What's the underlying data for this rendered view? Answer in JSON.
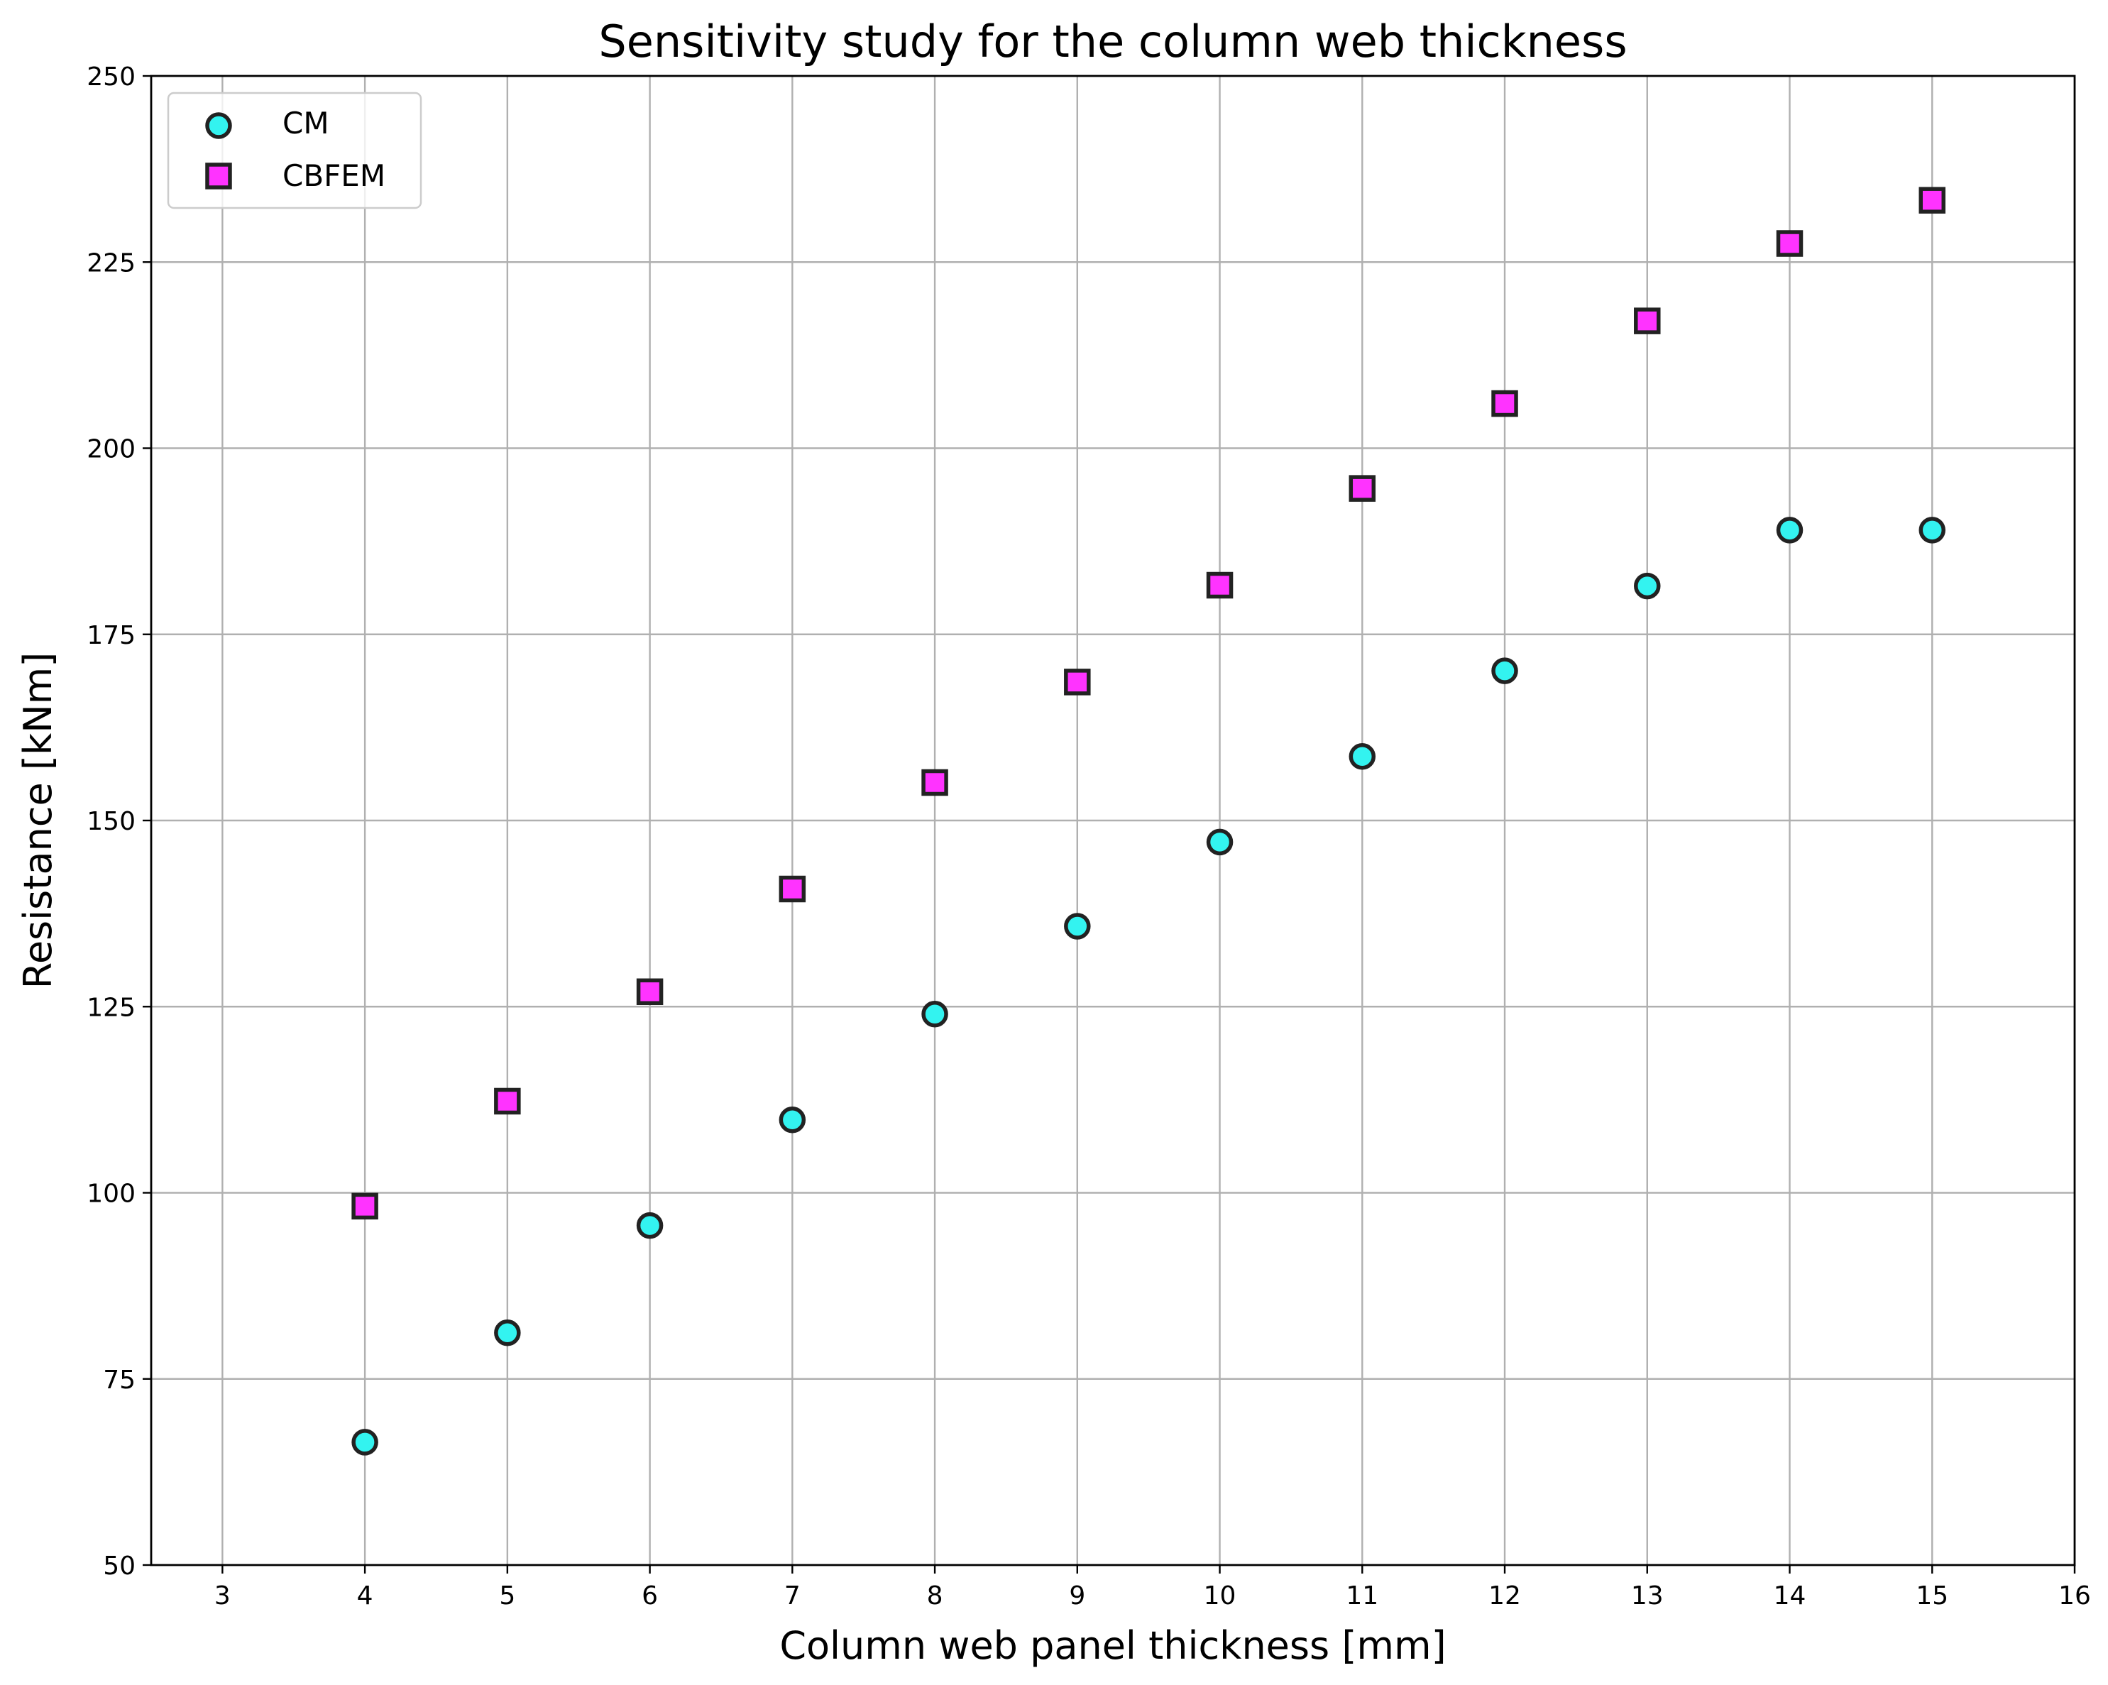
{
  "chart_data": {
    "type": "scatter",
    "title": "Sensitivity study for the column web thickness",
    "xlabel": "Column web panel thickness [mm]",
    "ylabel": "Resistance [kNm]",
    "xlim": [
      2.5,
      16
    ],
    "ylim": [
      50,
      250
    ],
    "xticks": [
      3,
      4,
      5,
      6,
      7,
      8,
      9,
      10,
      11,
      12,
      13,
      14,
      15,
      16
    ],
    "yticks": [
      50,
      75,
      100,
      125,
      150,
      175,
      200,
      225,
      250
    ],
    "grid": true,
    "legend_position": "top-left",
    "series": [
      {
        "name": "CM",
        "marker": "circle",
        "color": "#33f3f0",
        "edge_color": "#222222",
        "x": [
          4,
          5,
          6,
          7,
          8,
          9,
          10,
          11,
          12,
          13,
          14,
          15
        ],
        "y": [
          66.5,
          81.2,
          95.6,
          109.8,
          124.0,
          135.8,
          147.1,
          158.6,
          170.1,
          181.5,
          189.0,
          189.0
        ]
      },
      {
        "name": "CBFEM",
        "marker": "square",
        "color": "#ff33ff",
        "edge_color": "#222222",
        "x": [
          4,
          5,
          6,
          7,
          8,
          9,
          10,
          11,
          12,
          13,
          14,
          15
        ],
        "y": [
          98.2,
          112.3,
          127.0,
          140.8,
          155.1,
          168.6,
          181.6,
          194.6,
          206.0,
          217.1,
          227.5,
          233.3
        ]
      }
    ]
  }
}
